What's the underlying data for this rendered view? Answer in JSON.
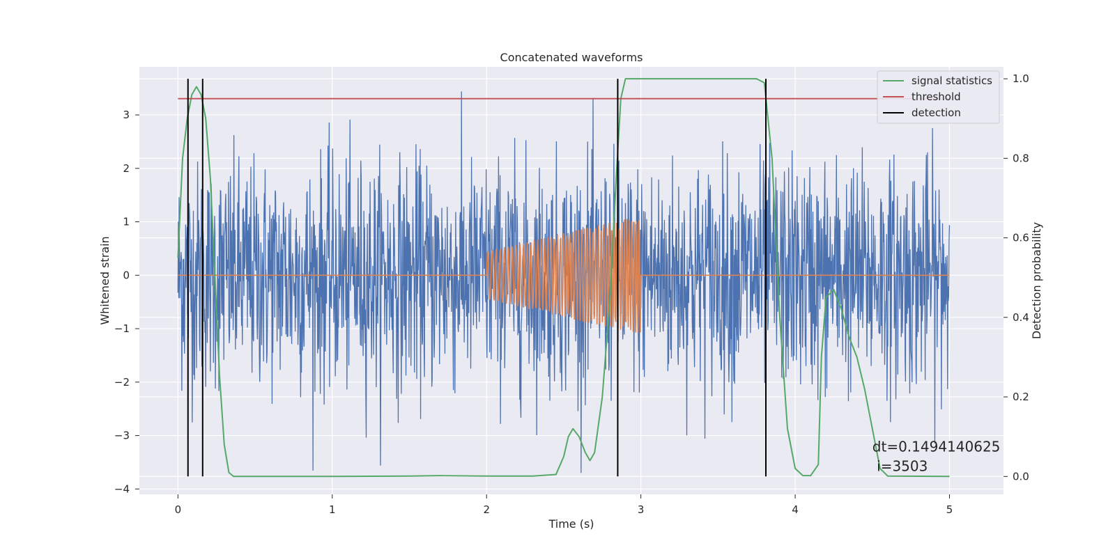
{
  "chart_data": {
    "type": "line",
    "title": "Concatenated waveforms",
    "xlabel": "Time (s)",
    "ylabel": "Whitened strain",
    "ylabel_right": "Detection probability",
    "xlim": [
      -0.25,
      5.35
    ],
    "ylim": [
      -4.1,
      3.9
    ],
    "ylim_right": [
      -0.045,
      1.03
    ],
    "xticks": [
      "0",
      "1",
      "2",
      "3",
      "4",
      "5"
    ],
    "yticks": [
      "−4",
      "−3",
      "−2",
      "−1",
      "0",
      "1",
      "2",
      "3"
    ],
    "yticks_right": [
      "0.0",
      "0.2",
      "0.4",
      "0.6",
      "0.8",
      "1.0"
    ],
    "grid": true,
    "legend_position": "top-right",
    "legend": [
      {
        "label": "signal statistics",
        "color": "#55a868"
      },
      {
        "label": "threshold",
        "color": "#c44e52"
      },
      {
        "label": "detection",
        "color": "#000000"
      }
    ],
    "series": [
      {
        "key": "whitened",
        "color": "#4c72b0",
        "axis": "left",
        "description_range": [
          -3.7,
          3.6
        ],
        "x_range": [
          0,
          5
        ]
      },
      {
        "key": "injected",
        "color": "#dd8452",
        "axis": "left",
        "x": [
          0,
          2.0,
          2.0,
          3.0,
          3.0,
          5.0
        ],
        "amplitude": [
          0,
          0.45,
          0.45,
          1.12,
          0,
          0
        ]
      },
      {
        "name": "signal statistics",
        "color": "#55a868",
        "axis": "right",
        "x": [
          0,
          0.03,
          0.06,
          0.09,
          0.12,
          0.15,
          0.18,
          0.21,
          0.24,
          0.27,
          0.3,
          0.33,
          0.36,
          0.4,
          0.6,
          1.0,
          1.5,
          1.7,
          2.0,
          2.3,
          2.45,
          2.5,
          2.53,
          2.56,
          2.6,
          2.64,
          2.67,
          2.7,
          2.75,
          2.8,
          2.84,
          2.87,
          2.9,
          3.0,
          3.5,
          3.75,
          3.8,
          3.85,
          3.9,
          3.95,
          4.0,
          4.05,
          4.1,
          4.15,
          4.17,
          4.2,
          4.25,
          4.3,
          4.35,
          4.4,
          4.45,
          4.5,
          4.55,
          4.6,
          5.0
        ],
        "y": [
          0.55,
          0.8,
          0.9,
          0.96,
          0.98,
          0.96,
          0.9,
          0.75,
          0.5,
          0.25,
          0.08,
          0.01,
          0.0,
          0.0,
          0.0,
          0.0,
          0.001,
          0.002,
          0.001,
          0.001,
          0.005,
          0.05,
          0.1,
          0.12,
          0.1,
          0.06,
          0.04,
          0.06,
          0.2,
          0.45,
          0.75,
          0.95,
          1.0,
          1.0,
          1.0,
          1.0,
          0.99,
          0.8,
          0.4,
          0.12,
          0.02,
          0.002,
          0.002,
          0.03,
          0.3,
          0.45,
          0.47,
          0.42,
          0.35,
          0.3,
          0.22,
          0.12,
          0.02,
          0.001,
          0.0
        ]
      },
      {
        "name": "threshold",
        "color": "#c44e52",
        "axis": "right",
        "x": [
          0,
          5
        ],
        "y": [
          0.95,
          0.95
        ]
      }
    ],
    "detections": [
      0.065,
      0.16,
      2.85,
      3.81
    ],
    "annotation": {
      "line1": "dt=0.1494140625",
      "line2": " i=3503",
      "x": 4.5,
      "y": -3.3
    }
  }
}
